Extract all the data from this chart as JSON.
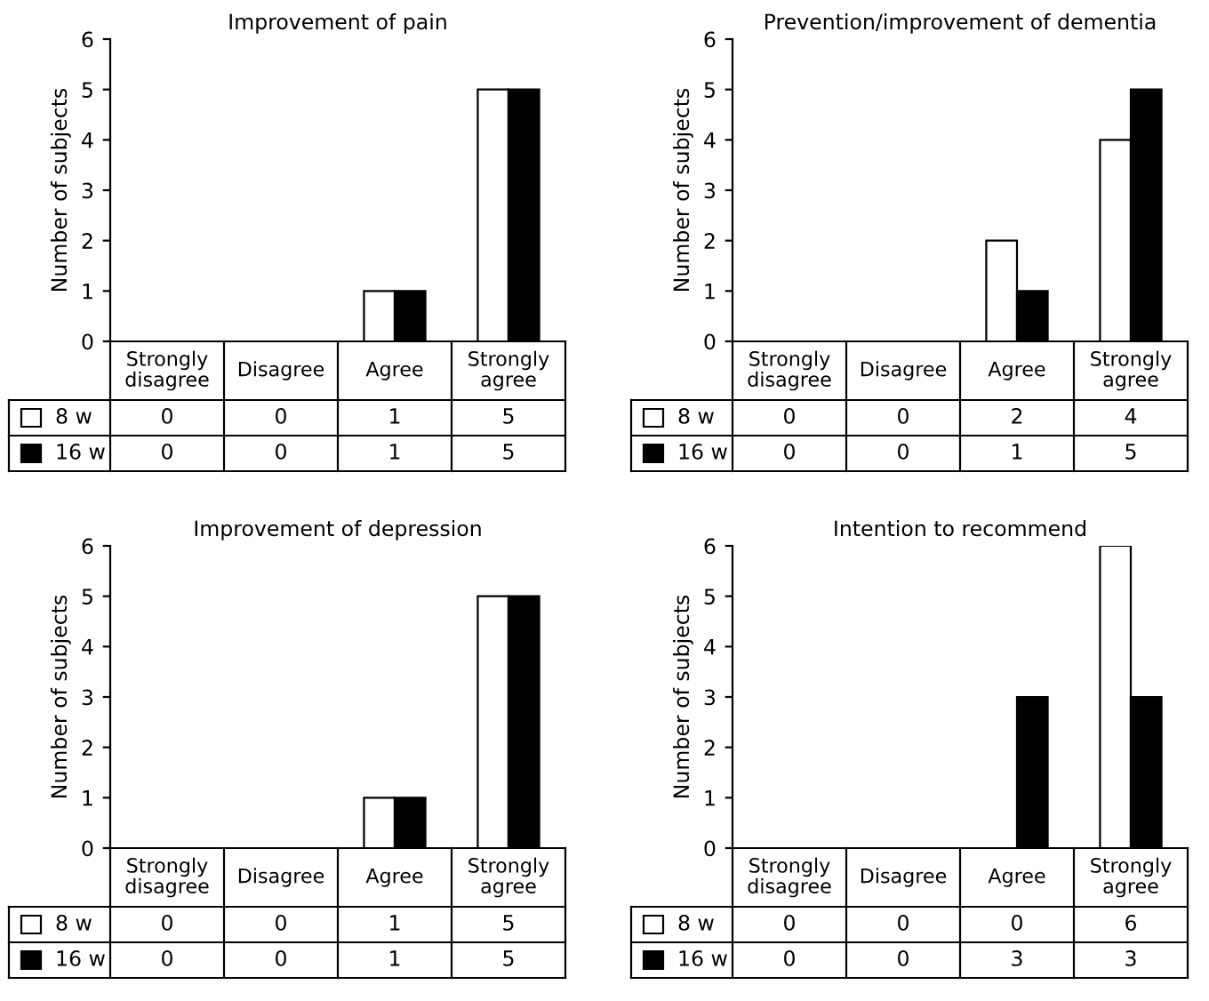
{
  "chart_data": [
    {
      "type": "bar",
      "title": "Improvement of pain",
      "ylabel": "Number of subjects",
      "categories": [
        "Strongly disagree",
        "Disagree",
        "Agree",
        "Strongly agree"
      ],
      "ylim": [
        0,
        6
      ],
      "yticks": [
        0,
        1,
        2,
        3,
        4,
        5,
        6
      ],
      "grid": false,
      "legend": "bottom",
      "data_labels": true,
      "series": [
        {
          "name": "8 w",
          "color": "#ffffff",
          "values": [
            0,
            0,
            1,
            5
          ]
        },
        {
          "name": "16 w",
          "color": "#000000",
          "values": [
            0,
            0,
            1,
            5
          ]
        }
      ]
    },
    {
      "type": "bar",
      "title": "Prevention/improvement of dementia",
      "ylabel": "Number of subjects",
      "categories": [
        "Strongly disagree",
        "Disagree",
        "Agree",
        "Strongly agree"
      ],
      "ylim": [
        0,
        6
      ],
      "yticks": [
        0,
        1,
        2,
        3,
        4,
        5,
        6
      ],
      "grid": false,
      "legend": "bottom",
      "data_labels": true,
      "series": [
        {
          "name": "8 w",
          "color": "#ffffff",
          "values": [
            0,
            0,
            2,
            4
          ]
        },
        {
          "name": "16 w",
          "color": "#000000",
          "values": [
            0,
            0,
            1,
            5
          ]
        }
      ]
    },
    {
      "type": "bar",
      "title": "Improvement of depression",
      "ylabel": "Number of subjects",
      "categories": [
        "Strongly disagree",
        "Disagree",
        "Agree",
        "Strongly agree"
      ],
      "ylim": [
        0,
        6
      ],
      "yticks": [
        0,
        1,
        2,
        3,
        4,
        5,
        6
      ],
      "grid": false,
      "legend": "bottom",
      "data_labels": true,
      "series": [
        {
          "name": "8 w",
          "color": "#ffffff",
          "values": [
            0,
            0,
            1,
            5
          ]
        },
        {
          "name": "16 w",
          "color": "#000000",
          "values": [
            0,
            0,
            1,
            5
          ]
        }
      ]
    },
    {
      "type": "bar",
      "title": "Intention to recommend",
      "ylabel": "Number of subjects",
      "categories": [
        "Strongly disagree",
        "Disagree",
        "Agree",
        "Strongly agree"
      ],
      "ylim": [
        0,
        6
      ],
      "yticks": [
        0,
        1,
        2,
        3,
        4,
        5,
        6
      ],
      "grid": false,
      "legend": "bottom",
      "data_labels": true,
      "series": [
        {
          "name": "8 w",
          "color": "#ffffff",
          "values": [
            0,
            0,
            0,
            6
          ]
        },
        {
          "name": "16 w",
          "color": "#000000",
          "values": [
            0,
            0,
            3,
            3
          ]
        }
      ]
    }
  ]
}
